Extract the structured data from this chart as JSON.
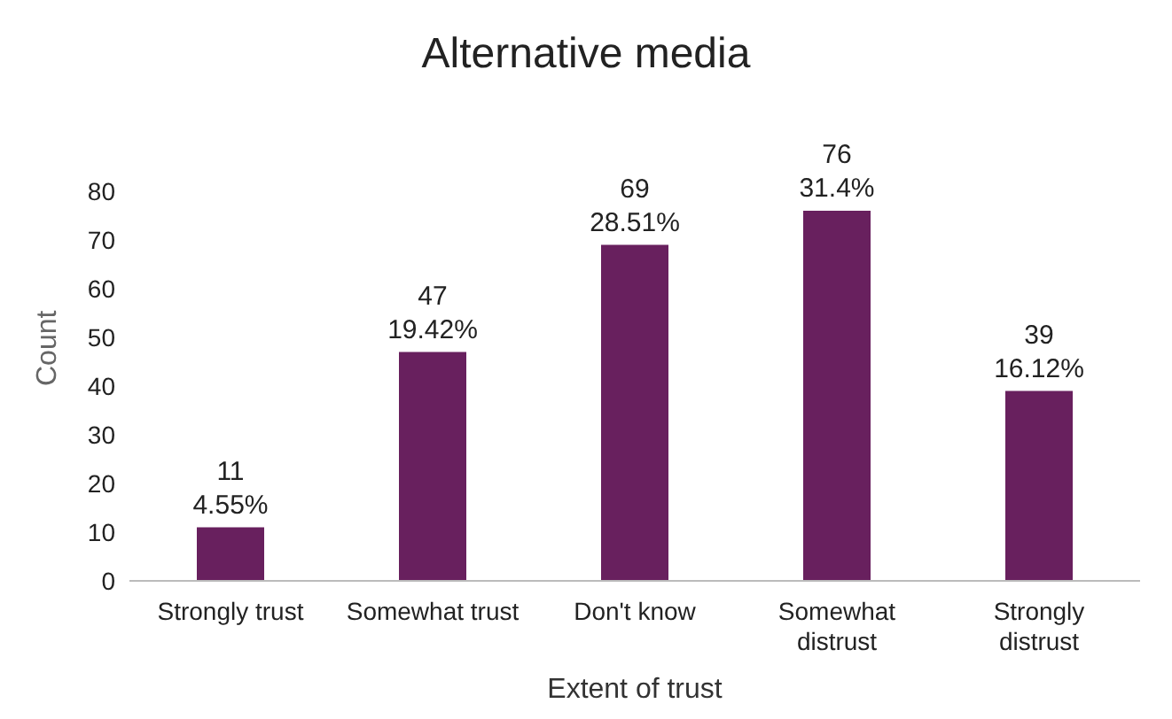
{
  "chart_data": {
    "type": "bar",
    "title": "Alternative media",
    "xlabel": "Extent of trust",
    "ylabel": "Count",
    "categories": [
      "Strongly trust",
      "Somewhat trust",
      "Don't know",
      "Somewhat distrust",
      "Strongly distrust"
    ],
    "values": [
      11,
      47,
      69,
      76,
      39
    ],
    "color": "#68205e",
    "value_labels": [
      "11\n4.55%",
      "47\n19.42%",
      "69\n28.51%",
      "76\n31.4%",
      "39\n16.12%"
    ],
    "ylim": [
      0,
      80
    ],
    "yticks": [
      0,
      10,
      20,
      30,
      40,
      50,
      60,
      70,
      80
    ],
    "grid": false,
    "legend": false
  }
}
